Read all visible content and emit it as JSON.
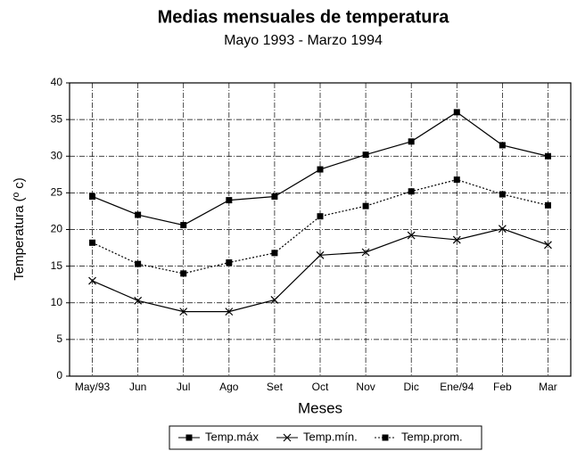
{
  "chart_data": {
    "type": "line",
    "title": "Medias mensuales de temperatura",
    "subtitle": "Mayo 1993 - Marzo 1994",
    "x_label": "Meses",
    "y_label": "Temperatura (º c)",
    "categories": [
      "May/93",
      "Jun",
      "Jul",
      "Ago",
      "Set",
      "Oct",
      "Nov",
      "Dic",
      "Ene/94",
      "Feb",
      "Mar"
    ],
    "series": [
      {
        "name": "Temp.máx",
        "color": "#000000",
        "marker": "square",
        "line_style": "solid",
        "values": [
          24.5,
          22,
          20.6,
          24,
          24.5,
          28.2,
          30.2,
          32,
          36,
          31.5,
          30
        ]
      },
      {
        "name": "Temp.mín.",
        "color": "#000000",
        "marker": "x",
        "line_style": "solid",
        "values": [
          13,
          10.3,
          8.8,
          8.8,
          10.4,
          16.5,
          16.9,
          19.2,
          18.6,
          20.1,
          17.9
        ]
      },
      {
        "name": "Temp.prom.",
        "color": "#000000",
        "marker": "square",
        "line_style": "dotted",
        "values": [
          18.2,
          15.3,
          14,
          15.5,
          16.8,
          21.8,
          23.2,
          25.2,
          26.8,
          24.8,
          23.3
        ]
      }
    ],
    "ylim": [
      0,
      40
    ],
    "yticks": [
      0,
      5,
      10,
      15,
      20,
      25,
      30,
      35,
      40
    ],
    "grid": true
  }
}
